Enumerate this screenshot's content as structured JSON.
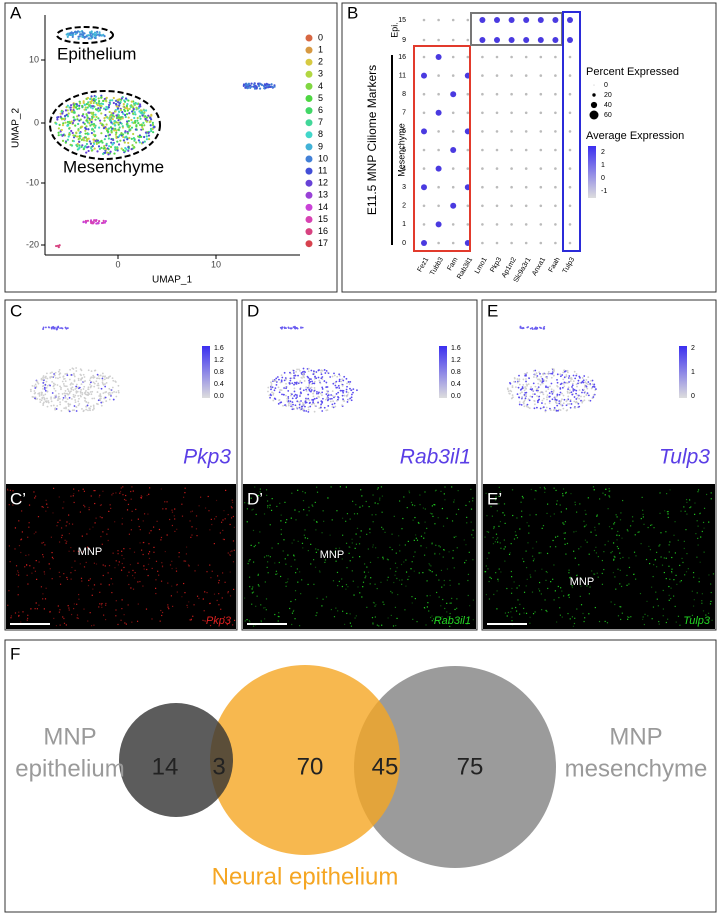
{
  "panels": {
    "A": {
      "letter": "A",
      "x_label": "UMAP_1",
      "y_label": "UMAP_2",
      "x_ticks": [
        "0",
        "10"
      ],
      "y_ticks": [
        "10",
        "0",
        "-10",
        "-20"
      ],
      "annotations": [
        "Epithelium",
        "Mesenchyme"
      ],
      "clusters": [
        "0",
        "1",
        "2",
        "3",
        "4",
        "5",
        "6",
        "7",
        "8",
        "9",
        "10",
        "11",
        "12",
        "13",
        "14",
        "15",
        "16",
        "17"
      ]
    },
    "B": {
      "letter": "B",
      "title": "E11.5 MNP Ciliome Markers",
      "groups": [
        "Epi.",
        "Mesenchyme"
      ],
      "rows": [
        "15",
        "9",
        "16",
        "11",
        "8",
        "7",
        "6",
        "5",
        "4",
        "3",
        "2",
        "1",
        "0"
      ],
      "genes": [
        "Fez1",
        "Tubb3",
        "Fam",
        "Rab3il1",
        "Lmo1",
        "Pkp3",
        "Ap1m2",
        "Slc9a3r1",
        "Anxa1",
        "Faah",
        "Tulp3"
      ],
      "size_legend_title": "Percent Expressed",
      "size_legend": [
        "0",
        "20",
        "40",
        "60"
      ],
      "color_legend_title": "Average Expression",
      "color_legend": [
        "2",
        "1",
        "0",
        "-1"
      ]
    },
    "C": {
      "letter": "C",
      "gene": "Pkp3",
      "scale": [
        "1.6",
        "1.2",
        "0.8",
        "0.4",
        "0.0"
      ]
    },
    "D": {
      "letter": "D",
      "gene": "Rab3il1",
      "scale": [
        "1.6",
        "1.2",
        "0.8",
        "0.4",
        "0.0"
      ]
    },
    "E": {
      "letter": "E",
      "gene": "Tulp3",
      "scale": [
        "2",
        "1",
        "0"
      ]
    },
    "C2": {
      "letter": "C’",
      "region": "MNP",
      "gene": "Pkp3"
    },
    "D2": {
      "letter": "D’",
      "region": "MNP",
      "gene": "Rab3il1"
    },
    "E2": {
      "letter": "E’",
      "region": "MNP",
      "gene": "Tulp3"
    },
    "F": {
      "letter": "F",
      "left_label": [
        "MNP",
        "epithelium"
      ],
      "right_label": [
        "MNP",
        "mesenchyme"
      ],
      "bottom_label": "Neural epithelium",
      "counts": [
        "14",
        "3",
        "70",
        "45",
        "75"
      ]
    }
  }
}
